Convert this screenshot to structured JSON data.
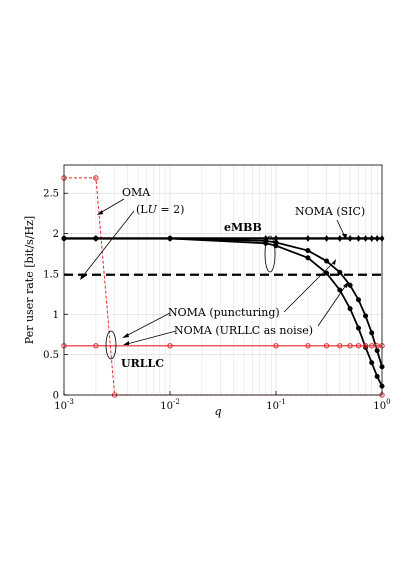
{
  "chart_data": {
    "type": "line",
    "xlabel": "q",
    "ylabel": "Per user rate [bit/s/Hz]",
    "xscale": "log",
    "xlim": [
      0.001,
      1
    ],
    "ylim": [
      0,
      2.85
    ],
    "grid": true,
    "x_ticks": [
      {
        "v": 0.001,
        "base": "10",
        "exp": "-3"
      },
      {
        "v": 0.01,
        "base": "10",
        "exp": "-2"
      },
      {
        "v": 0.1,
        "base": "10",
        "exp": "-1"
      },
      {
        "v": 1,
        "base": "10",
        "exp": "0"
      }
    ],
    "y_ticks": [
      {
        "v": 0,
        "label": "0"
      },
      {
        "v": 0.5,
        "label": "0.5"
      },
      {
        "v": 1,
        "label": "1"
      },
      {
        "v": 1.5,
        "label": "1.5"
      },
      {
        "v": 2,
        "label": "2"
      },
      {
        "v": 2.5,
        "label": "2.5"
      }
    ],
    "colors": {
      "embb": "#000000",
      "urllc": "#e8262b",
      "grid": "#dddddd"
    },
    "series": [
      {
        "key": "oma_embb",
        "style": "dashed",
        "color": "#000000",
        "marker": "none",
        "x": [
          0.001,
          1
        ],
        "y": [
          1.49,
          1.49
        ]
      },
      {
        "key": "oma_urllc",
        "style": "dotted",
        "color": "#e8262b",
        "marker": "circle",
        "x": [
          0.001,
          0.002,
          0.003,
          1
        ],
        "y": [
          2.69,
          2.69,
          0,
          0
        ]
      },
      {
        "key": "sic_embb",
        "style": "solid-thick",
        "color": "#000000",
        "marker": "diamond",
        "x": [
          0.001,
          0.002,
          0.01,
          0.08,
          0.1,
          0.2,
          0.3,
          0.4,
          0.5,
          0.6,
          0.7,
          0.8,
          0.9,
          1.0
        ],
        "y": [
          1.94,
          1.94,
          1.94,
          1.94,
          1.94,
          1.94,
          1.94,
          1.94,
          1.94,
          1.94,
          1.94,
          1.94,
          1.94,
          1.94
        ]
      },
      {
        "key": "puncturing_embb",
        "style": "solid",
        "color": "#000000",
        "marker": "circle",
        "x": [
          0.001,
          0.002,
          0.01,
          0.08,
          0.1,
          0.2,
          0.3,
          0.4,
          0.5,
          0.6,
          0.7,
          0.8,
          0.9,
          1.0
        ],
        "y": [
          1.94,
          1.94,
          1.94,
          1.91,
          1.89,
          1.79,
          1.66,
          1.52,
          1.36,
          1.18,
          0.98,
          0.77,
          0.55,
          0.35
        ]
      },
      {
        "key": "noise_embb",
        "style": "solid",
        "color": "#000000",
        "marker": "circle",
        "x": [
          0.001,
          0.002,
          0.01,
          0.08,
          0.1,
          0.2,
          0.3,
          0.4,
          0.5,
          0.6,
          0.7,
          0.8,
          0.9,
          1.0
        ],
        "y": [
          1.94,
          1.94,
          1.94,
          1.88,
          1.85,
          1.7,
          1.51,
          1.3,
          1.07,
          0.83,
          0.59,
          0.4,
          0.23,
          0.11
        ]
      },
      {
        "key": "noma_urllc",
        "style": "solid",
        "color": "#e8262b",
        "marker": "circle",
        "x": [
          0.001,
          0.002,
          0.01,
          0.1,
          0.2,
          0.3,
          0.4,
          0.5,
          0.6,
          0.7,
          0.8,
          0.9,
          1.0
        ],
        "y": [
          0.61,
          0.61,
          0.61,
          0.61,
          0.61,
          0.61,
          0.61,
          0.61,
          0.61,
          0.61,
          0.61,
          0.61,
          0.61
        ]
      }
    ],
    "annotations": {
      "oma": "OMA",
      "oma_sub_pre": "(L",
      "oma_sub_index": "U",
      "oma_sub_post": " = 2)",
      "embb": "eMBB",
      "sic": "NOMA (SIC)",
      "puncturing": "NOMA (puncturing)",
      "noise": "NOMA (URLLC as noise)",
      "urllc": "URLLC"
    }
  }
}
